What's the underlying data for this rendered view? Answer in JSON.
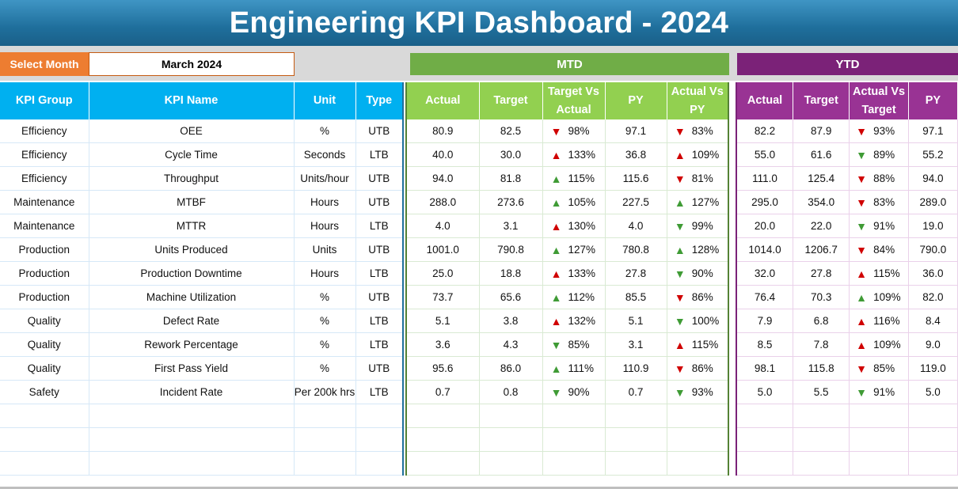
{
  "title": "Engineering KPI Dashboard - 2024",
  "select": {
    "label": "Select Month",
    "value": "March 2024"
  },
  "banners": {
    "mtd": "MTD",
    "ytd": "YTD"
  },
  "headers": {
    "left": [
      "KPI Group",
      "KPI Name",
      "Unit",
      "Type"
    ],
    "mtd": [
      "Actual",
      "Target",
      "Target Vs Actual",
      "PY",
      "Actual Vs PY"
    ],
    "ytd": [
      "Actual",
      "Target",
      "Actual Vs Target",
      "PY"
    ]
  },
  "colors": {
    "good_arrow": "#3f9b35",
    "bad_arrow": "#d00000",
    "left_header": "#00b0f0",
    "mtd_header": "#92d050",
    "ytd_header": "#993394"
  },
  "rows": [
    {
      "group": "Efficiency",
      "name": "OEE",
      "unit": "%",
      "type": "UTB",
      "mtd": {
        "actual": "80.9",
        "target": "82.5",
        "tva": "98%",
        "tva_icon": "down-bad",
        "py": "97.1",
        "avp": "83%",
        "avp_icon": "down-bad"
      },
      "ytd": {
        "actual": "82.2",
        "target": "87.9",
        "avt": "93%",
        "avt_icon": "down-bad",
        "py": "97.1"
      }
    },
    {
      "group": "Efficiency",
      "name": "Cycle Time",
      "unit": "Seconds",
      "type": "LTB",
      "mtd": {
        "actual": "40.0",
        "target": "30.0",
        "tva": "133%",
        "tva_icon": "up-bad",
        "py": "36.8",
        "avp": "109%",
        "avp_icon": "up-bad"
      },
      "ytd": {
        "actual": "55.0",
        "target": "61.6",
        "avt": "89%",
        "avt_icon": "down-good",
        "py": "55.2"
      }
    },
    {
      "group": "Efficiency",
      "name": "Throughput",
      "unit": "Units/hour",
      "type": "UTB",
      "mtd": {
        "actual": "94.0",
        "target": "81.8",
        "tva": "115%",
        "tva_icon": "up-good",
        "py": "115.6",
        "avp": "81%",
        "avp_icon": "down-bad"
      },
      "ytd": {
        "actual": "111.0",
        "target": "125.4",
        "avt": "88%",
        "avt_icon": "down-bad",
        "py": "94.0"
      }
    },
    {
      "group": "Maintenance",
      "name": "MTBF",
      "unit": "Hours",
      "type": "UTB",
      "mtd": {
        "actual": "288.0",
        "target": "273.6",
        "tva": "105%",
        "tva_icon": "up-good",
        "py": "227.5",
        "avp": "127%",
        "avp_icon": "up-good"
      },
      "ytd": {
        "actual": "295.0",
        "target": "354.0",
        "avt": "83%",
        "avt_icon": "down-bad",
        "py": "289.0"
      }
    },
    {
      "group": "Maintenance",
      "name": "MTTR",
      "unit": "Hours",
      "type": "LTB",
      "mtd": {
        "actual": "4.0",
        "target": "3.1",
        "tva": "130%",
        "tva_icon": "up-bad",
        "py": "4.0",
        "avp": "99%",
        "avp_icon": "down-good"
      },
      "ytd": {
        "actual": "20.0",
        "target": "22.0",
        "avt": "91%",
        "avt_icon": "down-good",
        "py": "19.0"
      }
    },
    {
      "group": "Production",
      "name": "Units Produced",
      "unit": "Units",
      "type": "UTB",
      "mtd": {
        "actual": "1001.0",
        "target": "790.8",
        "tva": "127%",
        "tva_icon": "up-good",
        "py": "780.8",
        "avp": "128%",
        "avp_icon": "up-good"
      },
      "ytd": {
        "actual": "1014.0",
        "target": "1206.7",
        "avt": "84%",
        "avt_icon": "down-bad",
        "py": "790.0"
      }
    },
    {
      "group": "Production",
      "name": "Production Downtime",
      "unit": "Hours",
      "type": "LTB",
      "mtd": {
        "actual": "25.0",
        "target": "18.8",
        "tva": "133%",
        "tva_icon": "up-bad",
        "py": "27.8",
        "avp": "90%",
        "avp_icon": "down-good"
      },
      "ytd": {
        "actual": "32.0",
        "target": "27.8",
        "avt": "115%",
        "avt_icon": "up-bad",
        "py": "36.0"
      }
    },
    {
      "group": "Production",
      "name": "Machine Utilization",
      "unit": "%",
      "type": "UTB",
      "mtd": {
        "actual": "73.7",
        "target": "65.6",
        "tva": "112%",
        "tva_icon": "up-good",
        "py": "85.5",
        "avp": "86%",
        "avp_icon": "down-bad"
      },
      "ytd": {
        "actual": "76.4",
        "target": "70.3",
        "avt": "109%",
        "avt_icon": "up-good",
        "py": "82.0"
      }
    },
    {
      "group": "Quality",
      "name": "Defect Rate",
      "unit": "%",
      "type": "LTB",
      "mtd": {
        "actual": "5.1",
        "target": "3.8",
        "tva": "132%",
        "tva_icon": "up-bad",
        "py": "5.1",
        "avp": "100%",
        "avp_icon": "down-good"
      },
      "ytd": {
        "actual": "7.9",
        "target": "6.8",
        "avt": "116%",
        "avt_icon": "up-bad",
        "py": "8.4"
      }
    },
    {
      "group": "Quality",
      "name": "Rework Percentage",
      "unit": "%",
      "type": "LTB",
      "mtd": {
        "actual": "3.6",
        "target": "4.3",
        "tva": "85%",
        "tva_icon": "down-good",
        "py": "3.1",
        "avp": "115%",
        "avp_icon": "up-bad"
      },
      "ytd": {
        "actual": "8.5",
        "target": "7.8",
        "avt": "109%",
        "avt_icon": "up-bad",
        "py": "9.0"
      }
    },
    {
      "group": "Quality",
      "name": "First Pass Yield",
      "unit": "%",
      "type": "UTB",
      "mtd": {
        "actual": "95.6",
        "target": "86.0",
        "tva": "111%",
        "tva_icon": "up-good",
        "py": "110.9",
        "avp": "86%",
        "avp_icon": "down-bad"
      },
      "ytd": {
        "actual": "98.1",
        "target": "115.8",
        "avt": "85%",
        "avt_icon": "down-bad",
        "py": "119.0"
      }
    },
    {
      "group": "Safety",
      "name": "Incident Rate",
      "unit": "Per 200k hrs",
      "type": "LTB",
      "mtd": {
        "actual": "0.7",
        "target": "0.8",
        "tva": "90%",
        "tva_icon": "down-good",
        "py": "0.7",
        "avp": "93%",
        "avp_icon": "down-good"
      },
      "ytd": {
        "actual": "5.0",
        "target": "5.5",
        "avt": "91%",
        "avt_icon": "down-good",
        "py": "5.0"
      }
    }
  ],
  "empty_rows": 3
}
